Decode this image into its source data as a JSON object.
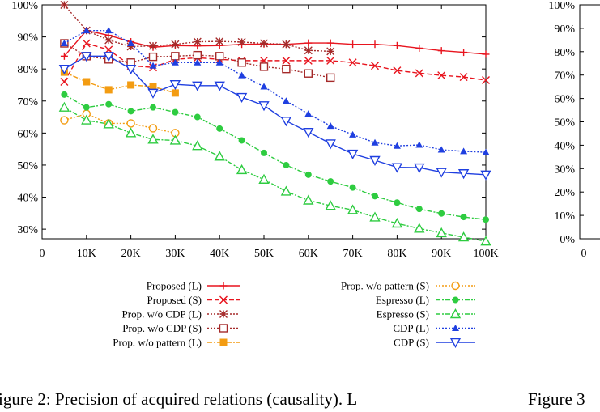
{
  "captions": {
    "main": "igure 2: Precision of acquired relations (causality). L",
    "right": "Figure 3"
  },
  "chart_data": [
    {
      "type": "line",
      "title": "",
      "xlabel": "",
      "ylabel": "",
      "xlim": [
        0,
        100000
      ],
      "ylim": [
        0.25,
        1.0
      ],
      "x_ticks": [
        "0",
        "10K",
        "20K",
        "30K",
        "40K",
        "50K",
        "60K",
        "70K",
        "80K",
        "90K",
        "100K"
      ],
      "y_ticks": [
        "30%",
        "40%",
        "50%",
        "60%",
        "70%",
        "80%",
        "90%",
        "100%"
      ],
      "grid": false,
      "legend_position": "bottom",
      "series": [
        {
          "name": "Proposed (L)",
          "color": "#e8141e",
          "dash": "solid",
          "marker": "plus",
          "x": [
            5000,
            10000,
            15000,
            20000,
            25000,
            30000,
            35000,
            40000,
            45000,
            50000,
            55000,
            60000,
            65000,
            70000,
            75000,
            80000,
            85000,
            90000,
            95000,
            100000
          ],
          "y": [
            0.84,
            0.92,
            0.905,
            0.885,
            0.868,
            0.873,
            0.872,
            0.873,
            0.877,
            0.878,
            0.877,
            0.881,
            0.881,
            0.877,
            0.877,
            0.873,
            0.865,
            0.857,
            0.852,
            0.846
          ]
        },
        {
          "name": "Proposed (S)",
          "color": "#e8141e",
          "dash": "dashed",
          "marker": "x",
          "x": [
            5000,
            10000,
            15000,
            20000,
            25000,
            30000,
            35000,
            40000,
            45000,
            50000,
            55000,
            60000,
            65000,
            70000,
            75000,
            80000,
            85000,
            90000,
            95000,
            100000
          ],
          "y": [
            0.76,
            0.88,
            0.86,
            0.81,
            0.805,
            0.83,
            0.835,
            0.83,
            0.826,
            0.826,
            0.826,
            0.826,
            0.826,
            0.82,
            0.81,
            0.795,
            0.787,
            0.78,
            0.775,
            0.765
          ]
        },
        {
          "name": "Prop. w/o CDP (L)",
          "color": "#a52a2a",
          "dash": "dotted",
          "marker": "star",
          "x": [
            5000,
            10000,
            15000,
            20000,
            25000,
            30000,
            35000,
            40000,
            45000,
            50000,
            55000,
            60000,
            65000
          ],
          "y": [
            1.0,
            0.92,
            0.89,
            0.87,
            0.872,
            0.877,
            0.885,
            0.886,
            0.884,
            0.88,
            0.877,
            0.858,
            0.855
          ]
        },
        {
          "name": "Prop. w/o CDP (S)",
          "color": "#a52a2a",
          "dash": "dotted",
          "marker": "square",
          "x": [
            5000,
            10000,
            15000,
            20000,
            25000,
            30000,
            35000,
            40000,
            45000,
            50000,
            55000,
            60000,
            65000
          ],
          "y": [
            0.88,
            0.84,
            0.83,
            0.82,
            0.838,
            0.84,
            0.843,
            0.84,
            0.82,
            0.807,
            0.8,
            0.786,
            0.773
          ]
        },
        {
          "name": "Prop. w/o pattern (L)",
          "color": "#f39c12",
          "dash": "dashdot",
          "marker": "filled-square",
          "x": [
            5000,
            10000,
            15000,
            20000,
            25000,
            30000
          ],
          "y": [
            0.79,
            0.76,
            0.735,
            0.75,
            0.745,
            0.725
          ]
        },
        {
          "name": "Prop. w/o pattern (S)",
          "color": "#f39c12",
          "dash": "dotted",
          "marker": "circle",
          "x": [
            5000,
            10000,
            15000,
            20000,
            25000,
            30000
          ],
          "y": [
            0.64,
            0.66,
            0.63,
            0.63,
            0.615,
            0.6
          ]
        },
        {
          "name": "Espresso (L)",
          "color": "#2ecc40",
          "dash": "dashdot",
          "marker": "filled-circle",
          "x": [
            5000,
            10000,
            15000,
            20000,
            25000,
            30000,
            35000,
            40000,
            45000,
            50000,
            55000,
            60000,
            65000,
            70000,
            75000,
            80000,
            85000,
            90000,
            95000,
            100000
          ],
          "y": [
            0.72,
            0.68,
            0.69,
            0.668,
            0.68,
            0.665,
            0.65,
            0.614,
            0.577,
            0.538,
            0.5,
            0.47,
            0.449,
            0.43,
            0.403,
            0.383,
            0.363,
            0.349,
            0.338,
            0.33
          ]
        },
        {
          "name": "Espresso (S)",
          "color": "#2ecc40",
          "dash": "dashdot",
          "marker": "triangle",
          "x": [
            5000,
            10000,
            15000,
            20000,
            25000,
            30000,
            35000,
            40000,
            45000,
            50000,
            55000,
            60000,
            65000,
            70000,
            75000,
            80000,
            85000,
            90000,
            95000,
            100000
          ],
          "y": [
            0.68,
            0.64,
            0.628,
            0.6,
            0.58,
            0.577,
            0.56,
            0.527,
            0.485,
            0.455,
            0.418,
            0.39,
            0.373,
            0.36,
            0.337,
            0.318,
            0.302,
            0.288,
            0.275,
            0.262
          ]
        },
        {
          "name": "CDP (L)",
          "color": "#1f3fe0",
          "dash": "dotted",
          "marker": "filled-triangle",
          "x": [
            5000,
            10000,
            15000,
            20000,
            25000,
            30000,
            35000,
            40000,
            45000,
            50000,
            55000,
            60000,
            65000,
            70000,
            75000,
            80000,
            85000,
            90000,
            95000,
            100000
          ],
          "y": [
            0.88,
            0.92,
            0.92,
            0.88,
            0.81,
            0.82,
            0.82,
            0.82,
            0.78,
            0.745,
            0.7,
            0.66,
            0.622,
            0.595,
            0.57,
            0.56,
            0.563,
            0.548,
            0.543,
            0.54
          ]
        },
        {
          "name": "CDP (S)",
          "color": "#1f3fe0",
          "dash": "solid",
          "marker": "down-triangle",
          "x": [
            5000,
            10000,
            15000,
            20000,
            25000,
            30000,
            35000,
            40000,
            45000,
            50000,
            55000,
            60000,
            65000,
            70000,
            75000,
            80000,
            85000,
            90000,
            95000,
            100000
          ],
          "y": [
            0.8,
            0.84,
            0.84,
            0.8,
            0.725,
            0.752,
            0.748,
            0.748,
            0.712,
            0.686,
            0.638,
            0.603,
            0.567,
            0.535,
            0.515,
            0.493,
            0.492,
            0.478,
            0.474,
            0.47
          ]
        }
      ]
    },
    {
      "type": "line",
      "title": "",
      "xlabel": "",
      "ylabel": "",
      "x_ticks": [
        "0"
      ],
      "y_ticks": [
        "0%",
        "10%",
        "20%",
        "30%",
        "40%",
        "50%",
        "60%",
        "70%",
        "80%",
        "90%",
        "100%"
      ],
      "ylim": [
        0,
        1.0
      ],
      "series": []
    }
  ]
}
